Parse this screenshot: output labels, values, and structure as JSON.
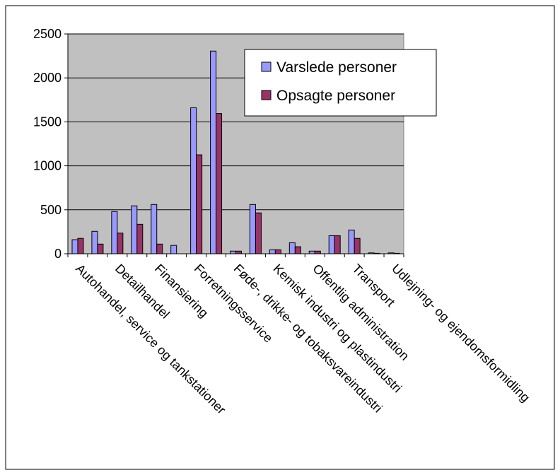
{
  "chart_data": {
    "type": "bar",
    "title": "",
    "xlabel": "",
    "ylabel": "",
    "ylim": [
      0,
      2500
    ],
    "yticks": [
      0,
      500,
      1000,
      1500,
      2000,
      2500
    ],
    "grid": true,
    "legend_position": "top-right",
    "colors": {
      "plot_bg": "#c0c0c0",
      "series1": "#9999ff",
      "series2": "#993366"
    },
    "categories": [
      "Autohandel, service og tankstationer",
      "",
      "Detailhandel",
      "",
      "Finansiering",
      "",
      "Forretningsservice",
      "",
      "Føde-, drikke- og tobaksvareindustri",
      "",
      "Kemisk industri og plastindustri",
      "",
      "Offentlig administration",
      "",
      "Transport",
      "",
      "Udlejning- og ejendomsformidling"
    ],
    "series": [
      {
        "name": "Varslede personer",
        "values": [
          160,
          255,
          480,
          545,
          560,
          95,
          1660,
          2305,
          30,
          560,
          45,
          125,
          30,
          205,
          270,
          10,
          10
        ]
      },
      {
        "name": "Opsagte personer",
        "values": [
          175,
          110,
          235,
          335,
          110,
          0,
          1125,
          1595,
          30,
          465,
          45,
          80,
          30,
          205,
          175,
          5,
          5
        ]
      }
    ]
  }
}
